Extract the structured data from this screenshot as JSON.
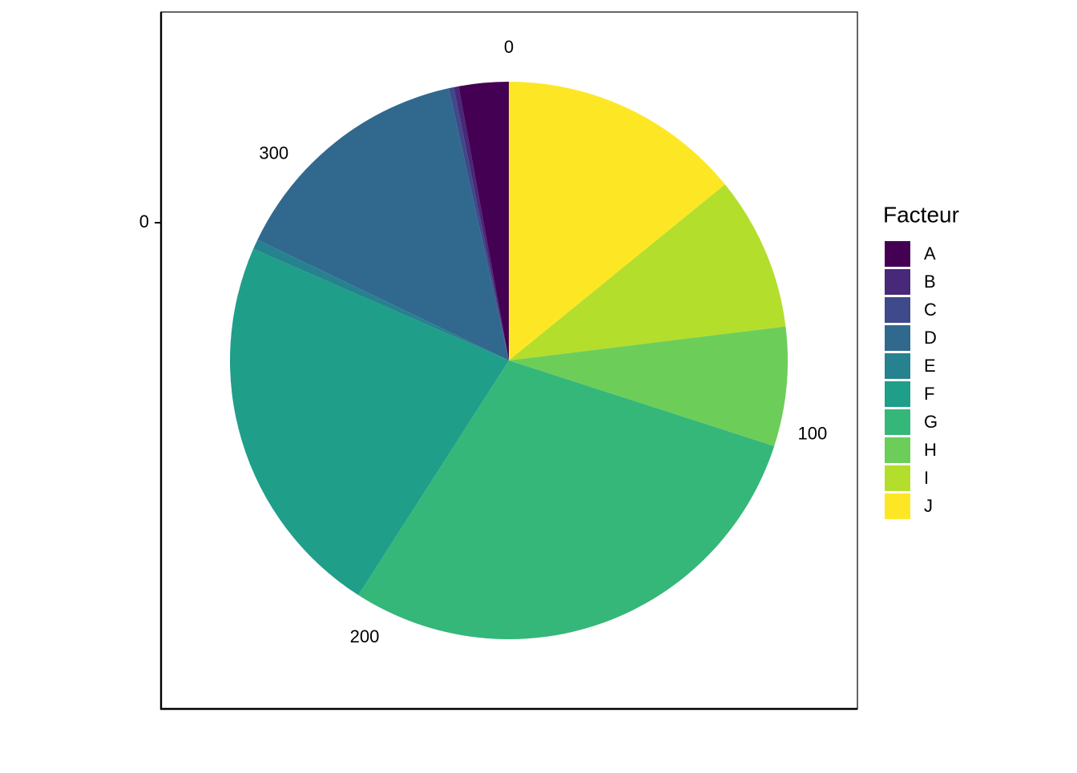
{
  "chart_data": {
    "type": "pie",
    "categories": [
      "J",
      "I",
      "H",
      "G",
      "F",
      "E",
      "D",
      "C",
      "B",
      "A"
    ],
    "values": [
      49,
      31,
      24,
      101,
      78,
      2,
      50,
      1,
      1,
      10
    ],
    "colors": [
      "#FDE725",
      "#B4DE2C",
      "#6DCD59",
      "#35B779",
      "#1F9E89",
      "#26828E",
      "#31688E",
      "#3E4A89",
      "#482878",
      "#440154"
    ],
    "theta_ticks": [
      0,
      100,
      200,
      300
    ],
    "yticks": [
      0
    ],
    "legend_title": "Facteur",
    "legend_order": [
      "A",
      "B",
      "C",
      "D",
      "E",
      "F",
      "G",
      "H",
      "I",
      "J"
    ],
    "legend": "right"
  }
}
